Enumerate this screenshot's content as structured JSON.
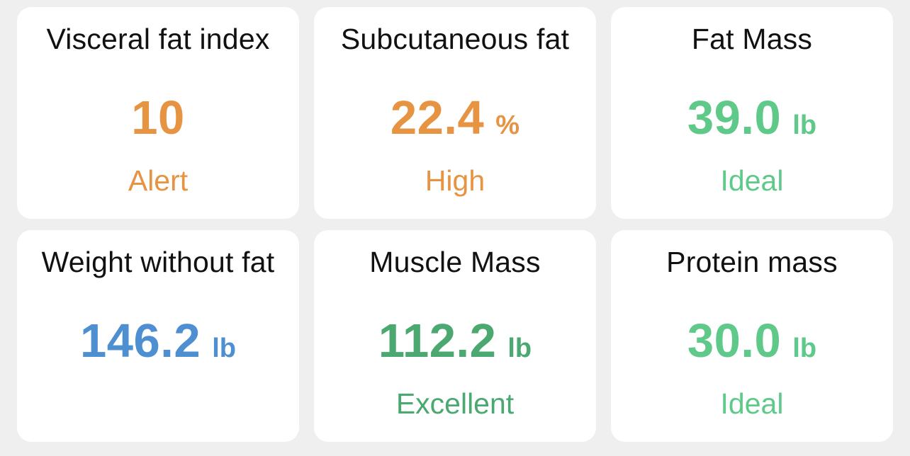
{
  "colors": {
    "alert": "#e69342",
    "ideal": "#5fc98a",
    "excellent": "#4aa870",
    "neutral": "#4d8fd1"
  },
  "cards": [
    {
      "title": "Visceral fat index",
      "value": "10",
      "unit": "",
      "status": "Alert",
      "color": "orange"
    },
    {
      "title": "Subcutaneous fat",
      "value": "22.4",
      "unit": "%",
      "status": "High",
      "color": "orange"
    },
    {
      "title": "Fat Mass",
      "value": "39.0",
      "unit": "lb",
      "status": "Ideal",
      "color": "green"
    },
    {
      "title": "Weight without fat",
      "value": "146.2",
      "unit": "lb",
      "status": "",
      "color": "blue"
    },
    {
      "title": "Muscle Mass",
      "value": "112.2",
      "unit": "lb",
      "status": "Excellent",
      "color": "darkgreen"
    },
    {
      "title": "Protein mass",
      "value": "30.0",
      "unit": "lb",
      "status": "Ideal",
      "color": "green"
    }
  ]
}
